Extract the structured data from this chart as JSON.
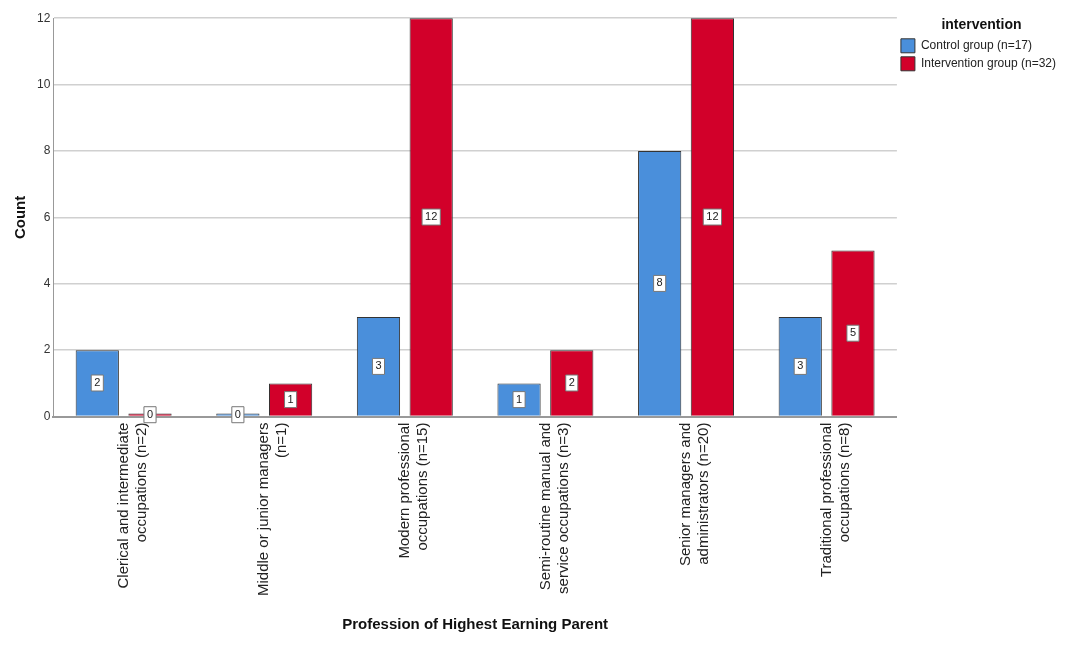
{
  "chart_data": {
    "type": "bar",
    "xlabel": "Profession of Highest Earning Parent",
    "ylabel": "Count",
    "legend_title": "intervention",
    "categories": [
      "Clerical and intermediate occupations (n=2)",
      "Middle or junior managers (n=1)",
      "Modern professional occupations (n=15)",
      "Semi-routine manual and service occupations (n=3)",
      "Senior managers and administrators (n=20)",
      "Traditional professional occupations (n=8)"
    ],
    "series": [
      {
        "name": "Control group (n=17)",
        "color": "#4a8fdb",
        "values": [
          2,
          0,
          3,
          1,
          8,
          3
        ]
      },
      {
        "name": "Intervention group (n=32)",
        "color": "#d2002a",
        "values": [
          0,
          1,
          12,
          2,
          12,
          5
        ]
      }
    ],
    "ylim": [
      0,
      12
    ],
    "yticks": [
      0,
      2,
      4,
      6,
      8,
      10,
      12
    ],
    "grid": "y",
    "legend": "top right",
    "data_labels": true
  }
}
